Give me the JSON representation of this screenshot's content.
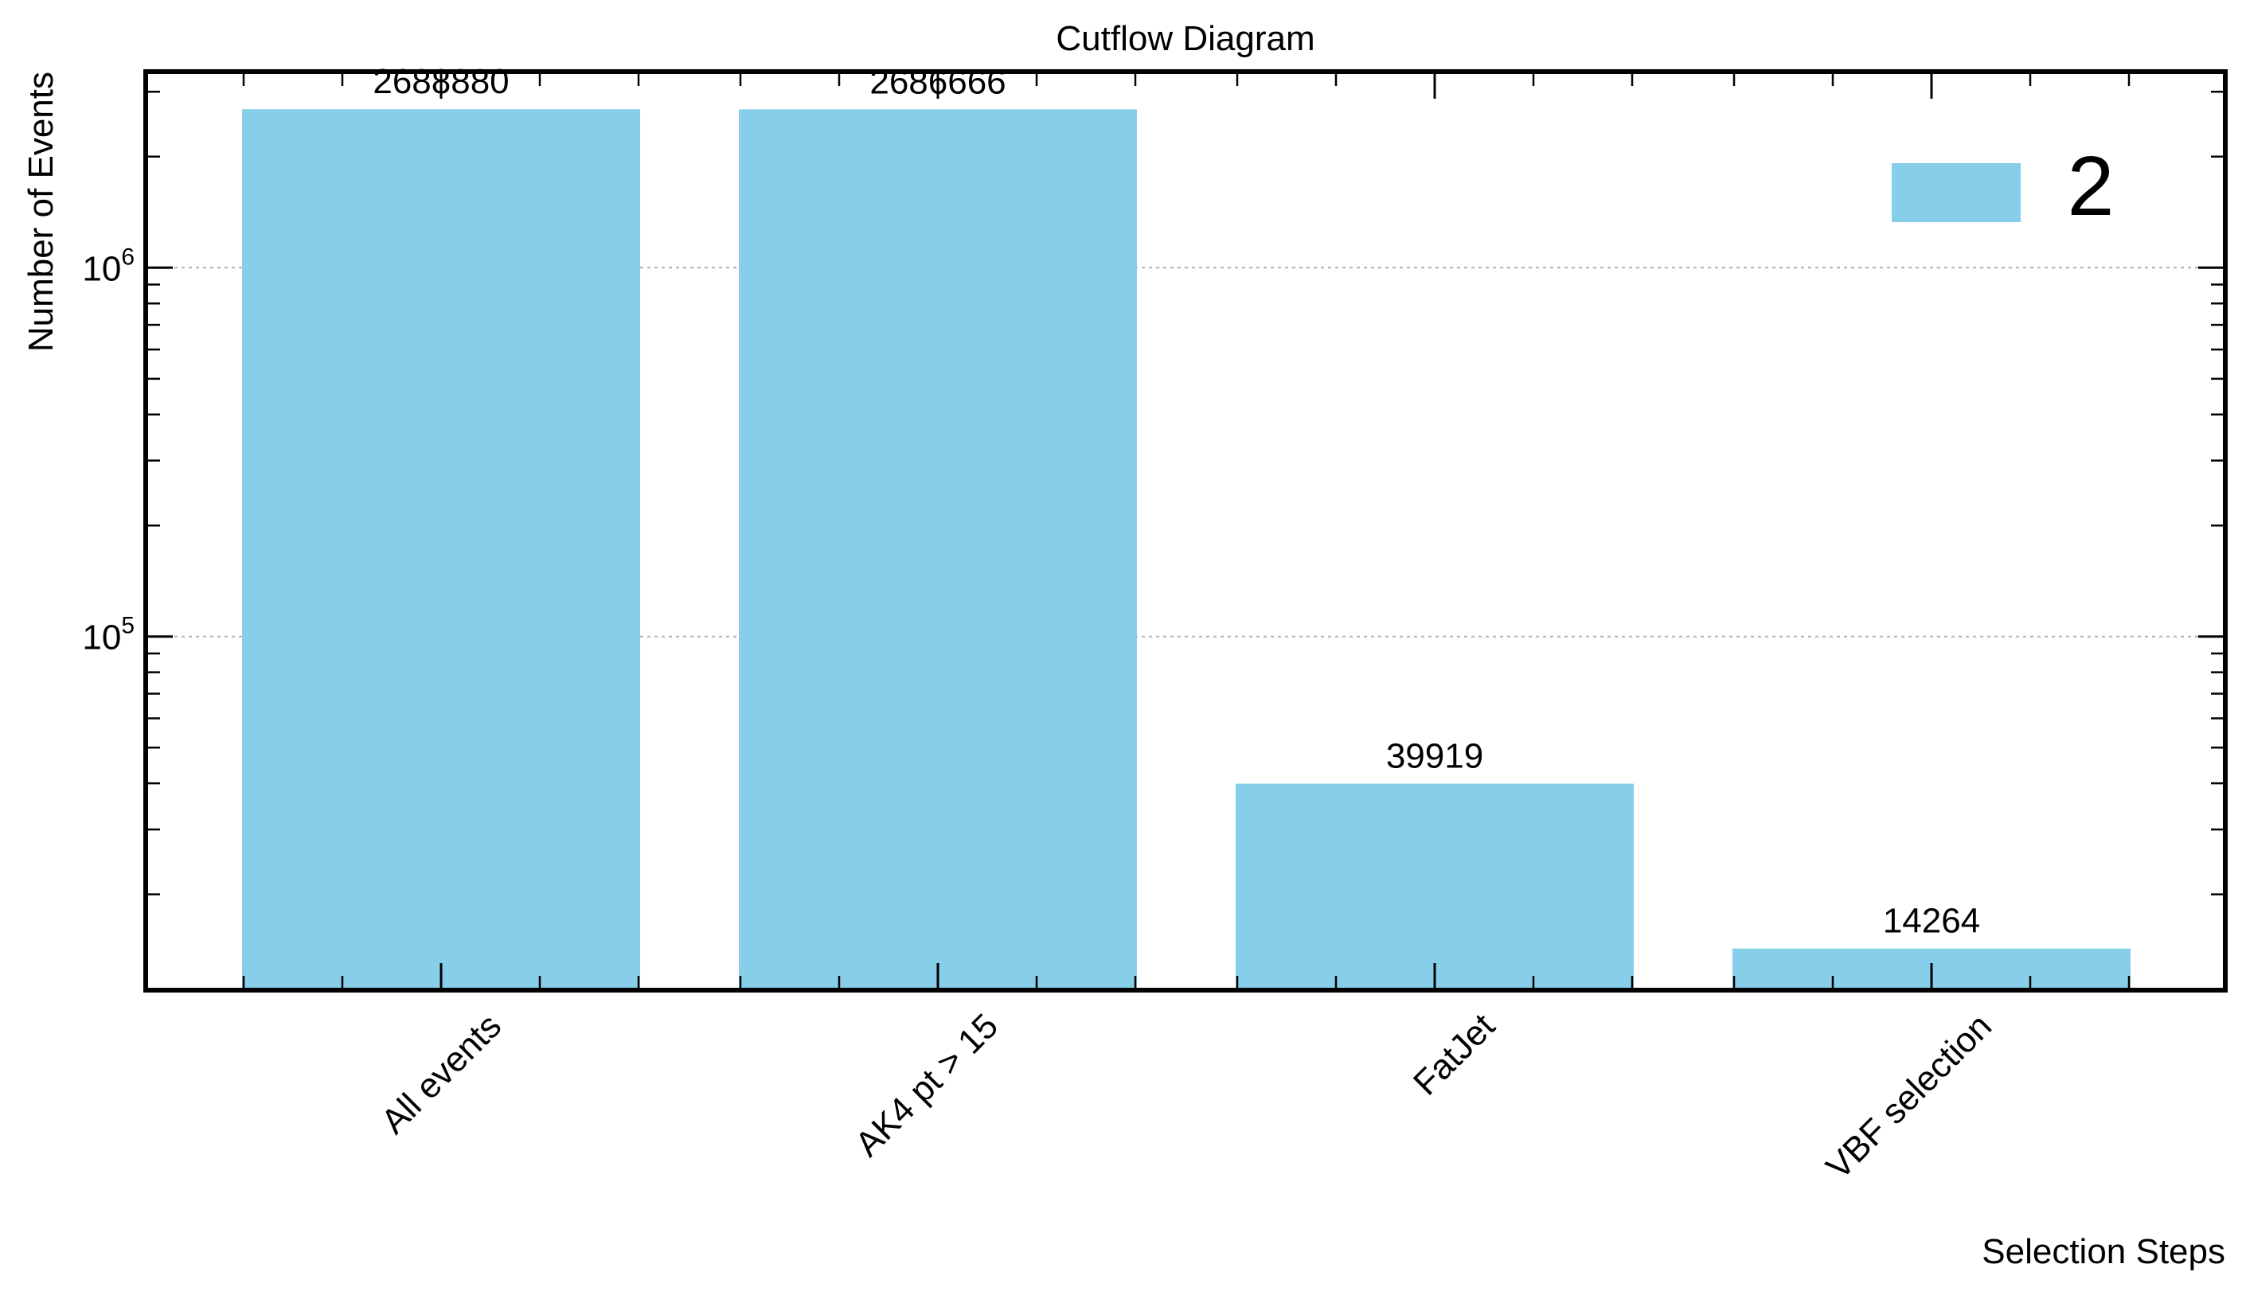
{
  "chart_data": {
    "type": "bar",
    "title": "Cutflow Diagram",
    "xlabel": "Selection Steps",
    "ylabel": "Number of Events",
    "categories": [
      "All events",
      "AK4 pt > 15",
      "FatJet",
      "VBF selection"
    ],
    "values": [
      2688880,
      2686666,
      39919,
      14264
    ],
    "value_labels": [
      "2688880",
      "2686666",
      "39919",
      "14264"
    ],
    "yscale": "log",
    "ylim": [
      11000,
      3400000
    ],
    "y_major_ticks": [
      {
        "value": 100000,
        "base": "10",
        "exp": "5"
      },
      {
        "value": 1000000,
        "base": "10",
        "exp": "6"
      }
    ],
    "y_minor_ticks": [
      20000,
      30000,
      40000,
      50000,
      60000,
      70000,
      80000,
      90000,
      200000,
      300000,
      400000,
      500000,
      600000,
      700000,
      800000,
      900000,
      2000000,
      3000000
    ],
    "ygrid": "major only",
    "legend": {
      "label": "2",
      "position": "top-right"
    },
    "colors": {
      "bar": "#87ceeb",
      "grid": "#b0b0b0",
      "axis": "#000000"
    }
  }
}
